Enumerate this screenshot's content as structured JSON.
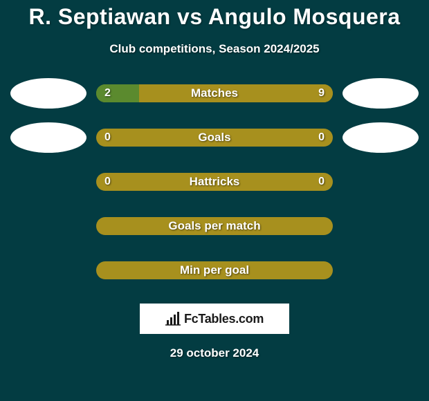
{
  "colors": {
    "page_bg": "#033c42",
    "text": "#ffffff",
    "track": "#a7901e",
    "left_fill": "#5b8a2e",
    "right_fill": "#a7901e",
    "avatar": "#ffffff",
    "logo_bg": "#ffffff",
    "logo_text": "#1a1a1a"
  },
  "title": "R. Septiawan vs Angulo Mosquera",
  "subtitle": "Club competitions, Season 2024/2025",
  "logo": "FcTables.com",
  "footer_date": "29 october 2024",
  "bars": [
    {
      "label": "Matches",
      "left": "2",
      "right": "9",
      "left_pct": 18.2,
      "right_pct": 81.8,
      "show_avatars": true,
      "show_values": true
    },
    {
      "label": "Goals",
      "left": "0",
      "right": "0",
      "left_pct": 0,
      "right_pct": 0,
      "show_avatars": true,
      "show_values": true
    },
    {
      "label": "Hattricks",
      "left": "0",
      "right": "0",
      "left_pct": 0,
      "right_pct": 0,
      "show_avatars": false,
      "show_values": true
    },
    {
      "label": "Goals per match",
      "left": "",
      "right": "",
      "left_pct": 0,
      "right_pct": 0,
      "show_avatars": false,
      "show_values": false
    },
    {
      "label": "Min per goal",
      "left": "",
      "right": "",
      "left_pct": 0,
      "right_pct": 0,
      "show_avatars": false,
      "show_values": false
    }
  ]
}
